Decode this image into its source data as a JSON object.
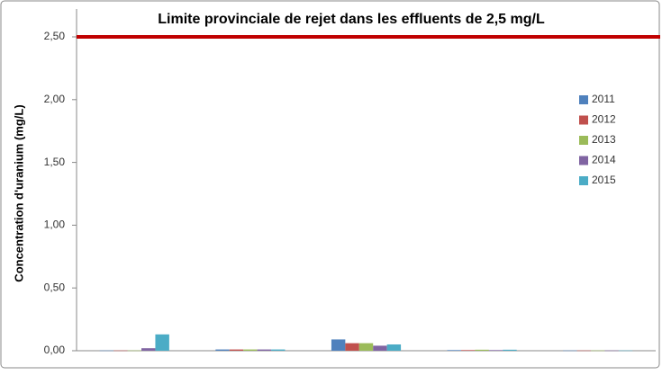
{
  "chart_data": {
    "type": "bar",
    "threshold": {
      "value": 2.5,
      "label": "Limite provinciale de rejet dans les effluents de 2,5 mg/L",
      "color": "#c00000"
    },
    "y_label": "Concentration d'uranium (mg/L)",
    "categories": [
      null,
      null,
      null,
      null,
      null
    ],
    "series": [
      {
        "name": "2011",
        "color": "#4f81bd",
        "values": [
          0.002,
          0.01,
          0.09,
          0.005,
          0.002
        ]
      },
      {
        "name": "2012",
        "color": "#c0504d",
        "values": [
          0.002,
          0.01,
          0.06,
          0.005,
          0.002
        ]
      },
      {
        "name": "2013",
        "color": "#9bbb59",
        "values": [
          0.002,
          0.01,
          0.06,
          0.008,
          0.002
        ]
      },
      {
        "name": "2014",
        "color": "#8064a2",
        "values": [
          0.02,
          0.01,
          0.04,
          0.005,
          0.002
        ]
      },
      {
        "name": "2015",
        "color": "#4bacc6",
        "values": [
          0.13,
          0.01,
          0.05,
          0.008,
          0.002
        ]
      }
    ],
    "ylim": [
      0,
      2.5
    ],
    "yticks": [
      {
        "value": 0,
        "label": "0,00"
      },
      {
        "value": 0.5,
        "label": "0,50"
      },
      {
        "value": 1,
        "label": "1,00"
      },
      {
        "value": 1.5,
        "label": "1,50"
      },
      {
        "value": 2,
        "label": "2,00"
      },
      {
        "value": 2.5,
        "label": "2,50"
      }
    ],
    "grid": false
  }
}
